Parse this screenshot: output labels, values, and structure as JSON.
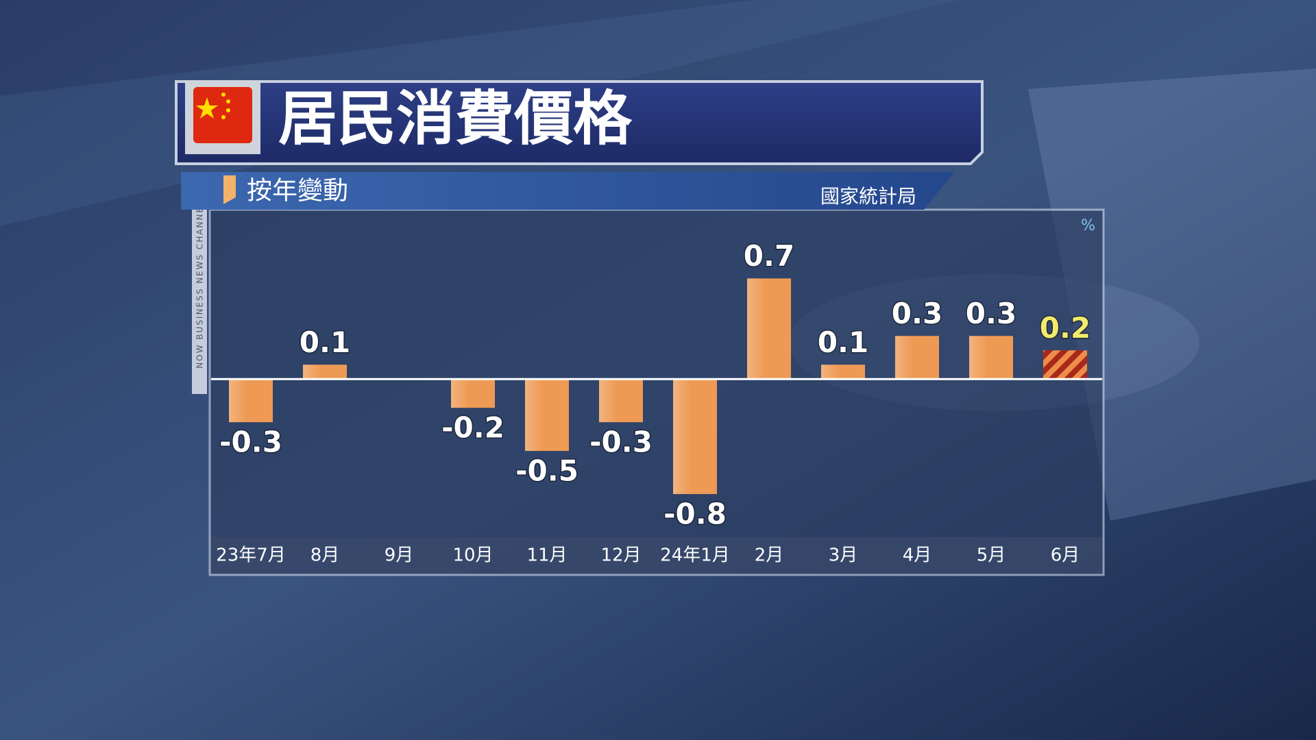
{
  "chart_data": {
    "type": "bar",
    "title": "居民消費價格",
    "subtitle": "按年變動",
    "source": "國家統計局",
    "unit": "%",
    "channel": "NOW BUSINESS NEWS CHANNEL",
    "categories": [
      "23年7月",
      "8月",
      "9月",
      "10月",
      "11月",
      "12月",
      "24年1月",
      "2月",
      "3月",
      "4月",
      "5月",
      "6月"
    ],
    "values": [
      -0.3,
      0.1,
      0,
      -0.2,
      -0.5,
      -0.3,
      -0.8,
      0.7,
      0.1,
      0.3,
      0.3,
      0.2
    ],
    "value_labels": [
      "-0.3",
      "0.1",
      null,
      "-0.2",
      "-0.5",
      "-0.3",
      "-0.8",
      "0.7",
      "0.1",
      "0.3",
      "0.3",
      "0.2"
    ],
    "color": "#ee9a55",
    "highlight": {
      "index": 11,
      "colors": [
        "#ee8c4a",
        "#a8281a"
      ],
      "label_color": "#f2ea6a"
    },
    "ylim": [
      -1.1,
      1.15
    ]
  }
}
